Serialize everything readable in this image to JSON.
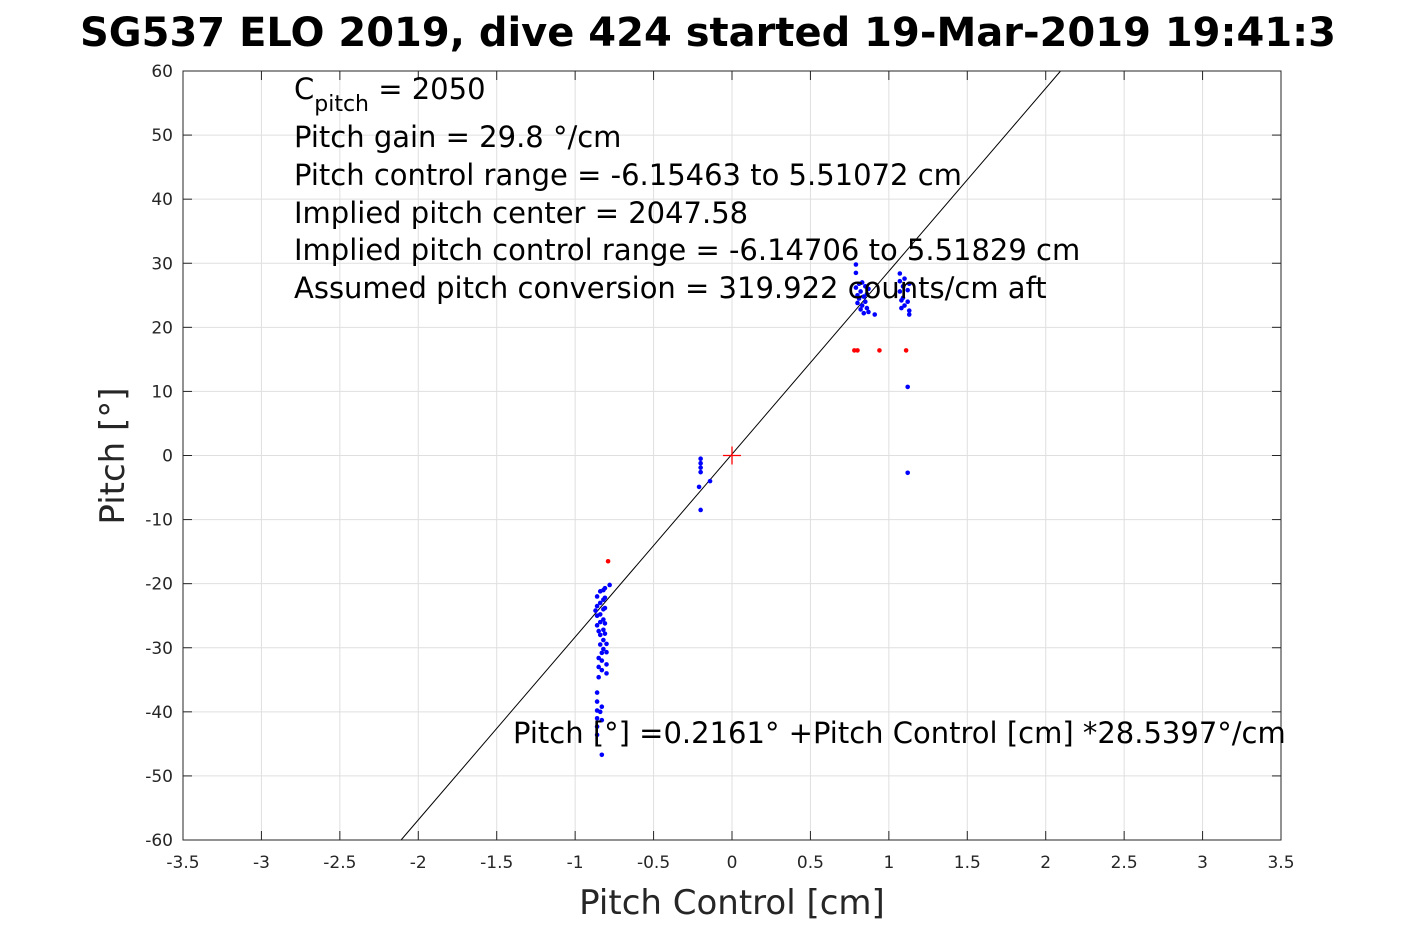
{
  "chart_data": {
    "type": "scatter",
    "title": "SG537 ELO 2019, dive 424 started 19-Mar-2019 19:41:3",
    "xlabel": "Pitch Control [cm]",
    "ylabel": "Pitch [°]",
    "xlim": [
      -3.5,
      3.5
    ],
    "ylim": [
      -60,
      60
    ],
    "xticks": [
      "-3.5",
      "-3",
      "-2.5",
      "-2",
      "-1.5",
      "-1",
      "-0.5",
      "0",
      "0.5",
      "1",
      "1.5",
      "2",
      "2.5",
      "3",
      "3.5"
    ],
    "yticks": [
      "-60",
      "-50",
      "-40",
      "-30",
      "-20",
      "-10",
      "0",
      "10",
      "20",
      "30",
      "40",
      "50",
      "60"
    ],
    "grid": true,
    "annotations": {
      "c_pitch_symbol": "C",
      "c_pitch_subscript": "pitch",
      "c_pitch_value": " = 2050",
      "lines": [
        "Pitch gain = 29.8 °/cm",
        "Pitch control range = -6.15463 to 5.51072 cm",
        "Implied pitch center = 2047.58",
        "Implied pitch control range = -6.14706 to 5.51829 cm",
        "Assumed pitch conversion = 319.922 counts/cm aft"
      ],
      "fit_label": "Pitch [°] =0.2161° +Pitch Control [cm] *28.5397°/cm"
    },
    "fit_line": {
      "intercept": 0.2161,
      "slope": 28.5397,
      "color": "#000000"
    },
    "center_marker": {
      "x": 0,
      "y": 0,
      "color": "#ff0000"
    },
    "series": [
      {
        "color": "#0000ff",
        "points": [
          [
            -0.86,
            -22.0
          ],
          [
            -0.86,
            -23.5
          ],
          [
            -0.86,
            -25.0
          ],
          [
            -0.86,
            -26.5
          ],
          [
            -0.87,
            -24.2
          ],
          [
            -0.85,
            -27.4
          ],
          [
            -0.84,
            -21.2
          ],
          [
            -0.84,
            -23.0
          ],
          [
            -0.84,
            -24.8
          ],
          [
            -0.84,
            -26.0
          ],
          [
            -0.84,
            -28.0
          ],
          [
            -0.84,
            -29.5
          ],
          [
            -0.83,
            -30.8
          ],
          [
            -0.83,
            -32.0
          ],
          [
            -0.83,
            -33.5
          ],
          [
            -0.82,
            -21.0
          ],
          [
            -0.82,
            -22.5
          ],
          [
            -0.82,
            -24.0
          ],
          [
            -0.82,
            -25.6
          ],
          [
            -0.82,
            -27.2
          ],
          [
            -0.82,
            -28.8
          ],
          [
            -0.82,
            -30.2
          ],
          [
            -0.81,
            -20.7
          ],
          [
            -0.81,
            -22.2
          ],
          [
            -0.81,
            -23.8
          ],
          [
            -0.81,
            -26.2
          ],
          [
            -0.81,
            -27.8
          ],
          [
            -0.8,
            -29.4
          ],
          [
            -0.8,
            -30.7
          ],
          [
            -0.8,
            -32.6
          ],
          [
            -0.8,
            -34.0
          ],
          [
            -0.78,
            -20.2
          ],
          [
            -0.85,
            -31.6
          ],
          [
            -0.85,
            -33.0
          ],
          [
            -0.85,
            -34.6
          ],
          [
            -0.86,
            -37.0
          ],
          [
            -0.86,
            -38.4
          ],
          [
            -0.86,
            -39.8
          ],
          [
            -0.86,
            -41.0
          ],
          [
            -0.86,
            -42.3
          ],
          [
            -0.86,
            -43.6
          ],
          [
            -0.84,
            -40.0
          ],
          [
            -0.83,
            -41.3
          ],
          [
            -0.83,
            -39.2
          ],
          [
            -0.83,
            -46.7
          ],
          [
            -0.2,
            -0.5
          ],
          [
            -0.2,
            -1.2
          ],
          [
            -0.2,
            -1.9
          ],
          [
            -0.2,
            -2.6
          ],
          [
            -0.21,
            -4.9
          ],
          [
            -0.2,
            -8.5
          ],
          [
            -0.14,
            -4.0
          ],
          [
            0.79,
            29.8
          ],
          [
            0.79,
            28.5
          ],
          [
            0.79,
            26.2
          ],
          [
            0.8,
            25.0
          ],
          [
            0.8,
            23.8
          ],
          [
            0.81,
            26.8
          ],
          [
            0.81,
            24.5
          ],
          [
            0.82,
            22.8
          ],
          [
            0.82,
            25.6
          ],
          [
            0.83,
            27.0
          ],
          [
            0.83,
            23.4
          ],
          [
            0.84,
            24.8
          ],
          [
            0.84,
            22.2
          ],
          [
            0.85,
            26.4
          ],
          [
            0.85,
            24.0
          ],
          [
            0.86,
            25.2
          ],
          [
            0.86,
            23.0
          ],
          [
            0.87,
            26.0
          ],
          [
            0.87,
            22.4
          ],
          [
            0.91,
            22.0
          ],
          [
            1.07,
            28.4
          ],
          [
            1.07,
            27.2
          ],
          [
            1.07,
            25.6
          ],
          [
            1.08,
            24.2
          ],
          [
            1.08,
            23.0
          ],
          [
            1.09,
            26.4
          ],
          [
            1.09,
            24.6
          ],
          [
            1.1,
            27.6
          ],
          [
            1.1,
            23.4
          ],
          [
            1.12,
            25.8
          ],
          [
            1.12,
            24.0
          ],
          [
            1.13,
            22.6
          ],
          [
            1.13,
            26.8
          ],
          [
            1.13,
            22.0
          ],
          [
            1.12,
            10.7
          ],
          [
            1.12,
            -2.7
          ]
        ]
      },
      {
        "color": "#ff0000",
        "points": [
          [
            -0.79,
            -16.5
          ],
          [
            0.78,
            16.4
          ],
          [
            0.8,
            16.4
          ],
          [
            0.94,
            16.4
          ],
          [
            1.11,
            16.4
          ]
        ]
      }
    ]
  }
}
